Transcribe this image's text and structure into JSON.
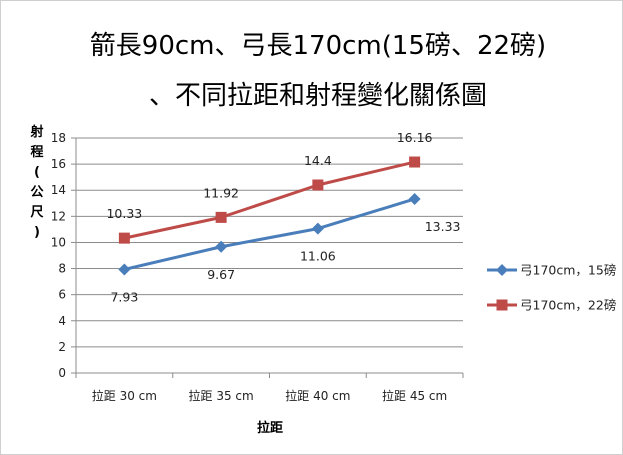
{
  "chart_data": {
    "type": "line",
    "title_line1": "箭長90cm、弓長170cm(15磅、22磅)",
    "title_line2": "、不同拉距和射程變化關係圖",
    "xlabel": "拉距",
    "ylabel_chars": [
      "射",
      "程",
      "(",
      "公",
      "尺",
      ")"
    ],
    "categories": [
      "拉距 30 cm",
      "拉距 35 cm",
      "拉距 40 cm",
      "拉距 45 cm"
    ],
    "ylim": [
      0,
      18
    ],
    "yticks": [
      "0",
      "2",
      "4",
      "6",
      "8",
      "10",
      "12",
      "14",
      "16",
      "18"
    ],
    "grid": true,
    "legend_position": "right",
    "series": [
      {
        "name": "弓170cm，15磅",
        "values": [
          7.93,
          9.67,
          11.06,
          13.33
        ],
        "labels": [
          "7.93",
          "9.67",
          "11.06",
          "13.33"
        ],
        "color": "#4a7ebb",
        "marker": "diamond"
      },
      {
        "name": "弓170cm，22磅",
        "values": [
          10.33,
          11.92,
          14.4,
          16.16
        ],
        "labels": [
          "10.33",
          "11.92",
          "14.4",
          "16.16"
        ],
        "color": "#be4b48",
        "marker": "square"
      }
    ]
  }
}
